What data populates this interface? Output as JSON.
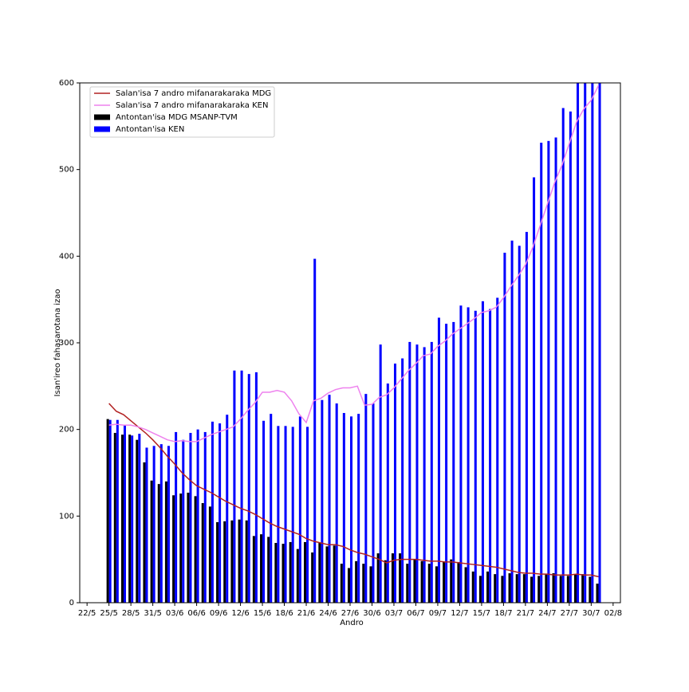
{
  "chart_data": {
    "type": "bar",
    "xlabel": "Andro",
    "ylabel": "Isan'ireo fahasarotana izao",
    "x": [
      "25/5",
      "26/5",
      "27/5",
      "28/5",
      "29/5",
      "30/5",
      "31/5",
      "01/6",
      "02/6",
      "03/6",
      "04/6",
      "05/6",
      "06/6",
      "07/6",
      "08/6",
      "09/6",
      "10/6",
      "11/6",
      "12/6",
      "13/6",
      "14/6",
      "15/6",
      "16/6",
      "17/6",
      "18/6",
      "19/6",
      "20/6",
      "21/6",
      "22/6",
      "23/6",
      "24/6",
      "25/6",
      "26/6",
      "27/6",
      "28/6",
      "29/6",
      "30/6",
      "01/7",
      "02/7",
      "03/7",
      "04/7",
      "05/7",
      "06/7",
      "07/7",
      "08/7",
      "09/7",
      "10/7",
      "11/7",
      "12/7",
      "13/7",
      "14/7",
      "15/7",
      "16/7",
      "17/7",
      "18/7",
      "19/7",
      "20/7",
      "21/7",
      "22/7",
      "23/7",
      "24/7",
      "25/7",
      "26/7",
      "27/7",
      "28/7",
      "29/7",
      "30/7",
      "31/7"
    ],
    "series": [
      {
        "name": "Salan'isa 7 andro mifanarakaraka MDG",
        "type": "line",
        "color": "#b22222",
        "values": [
          230,
          221,
          217,
          210,
          203,
          196,
          188,
          179,
          169,
          160,
          150,
          142,
          135,
          131,
          127,
          122,
          117,
          113,
          109,
          106,
          102,
          97,
          92,
          88,
          85,
          82,
          79,
          74,
          71,
          69,
          67,
          67,
          65,
          61,
          58,
          56,
          53,
          50,
          46,
          49,
          50,
          50,
          50,
          49,
          48,
          48,
          47,
          47,
          46,
          45,
          44,
          43,
          42,
          41,
          39,
          37,
          35,
          34,
          34,
          33,
          33,
          32,
          32,
          32,
          33,
          32,
          32,
          30
        ]
      },
      {
        "name": "Salan'isa 7 andro mifanarakaraka KEN",
        "type": "line",
        "color": "#ee82ee",
        "values": [
          205,
          206,
          205,
          205,
          203,
          200,
          196,
          192,
          188,
          186,
          187,
          186,
          186,
          190,
          194,
          197,
          200,
          203,
          212,
          222,
          231,
          243,
          243,
          245,
          243,
          233,
          218,
          208,
          233,
          236,
          242,
          246,
          248,
          248,
          250,
          228,
          229,
          237,
          240,
          248,
          258,
          268,
          276,
          285,
          287,
          296,
          302,
          310,
          316,
          322,
          328,
          335,
          337,
          341,
          352,
          365,
          377,
          390,
          410,
          435,
          460,
          485,
          505,
          530,
          555,
          570,
          580,
          597
        ]
      },
      {
        "name": "Antontan'isa MDG MSANP-TVM",
        "type": "bar",
        "color": "#000000",
        "values": [
          212,
          196,
          194,
          194,
          188,
          162,
          141,
          137,
          140,
          124,
          126,
          127,
          123,
          115,
          111,
          93,
          94,
          95,
          96,
          95,
          77,
          79,
          76,
          69,
          68,
          70,
          62,
          70,
          58,
          69,
          65,
          66,
          45,
          40,
          48,
          45,
          42,
          57,
          49,
          57,
          57,
          45,
          50,
          48,
          45,
          42,
          47,
          50,
          47,
          41,
          36,
          31,
          36,
          33,
          31,
          34,
          33,
          33,
          30,
          31,
          33,
          34,
          31,
          31,
          33,
          33,
          30,
          22
        ]
      },
      {
        "name": "Antontan'isa KEN",
        "type": "bar",
        "color": "#0000ff",
        "values": [
          211,
          211,
          205,
          193,
          195,
          179,
          181,
          183,
          181,
          197,
          188,
          196,
          200,
          197,
          209,
          207,
          217,
          268,
          268,
          264,
          266,
          210,
          218,
          204,
          204,
          203,
          215,
          203,
          397,
          234,
          240,
          230,
          219,
          215,
          218,
          241,
          230,
          298,
          253,
          276,
          282,
          301,
          298,
          295,
          301,
          329,
          322,
          324,
          343,
          341,
          337,
          348,
          339,
          352,
          404,
          418,
          412,
          428,
          491,
          531,
          533,
          537,
          571,
          567,
          630,
          612,
          645,
          620
        ]
      }
    ],
    "xlim": [
      "21/5",
      "03/8"
    ],
    "xticks": [
      "22/5",
      "25/5",
      "28/5",
      "31/5",
      "03/6",
      "06/6",
      "09/6",
      "12/6",
      "15/6",
      "18/6",
      "21/6",
      "24/6",
      "27/6",
      "30/6",
      "03/7",
      "06/7",
      "09/7",
      "12/7",
      "15/7",
      "18/7",
      "21/7",
      "24/7",
      "27/7",
      "30/7",
      "02/8"
    ],
    "ylim": [
      0,
      600
    ],
    "yticks": [
      0,
      100,
      200,
      300,
      400,
      500,
      600
    ],
    "grid": false,
    "legend": "upper left"
  }
}
